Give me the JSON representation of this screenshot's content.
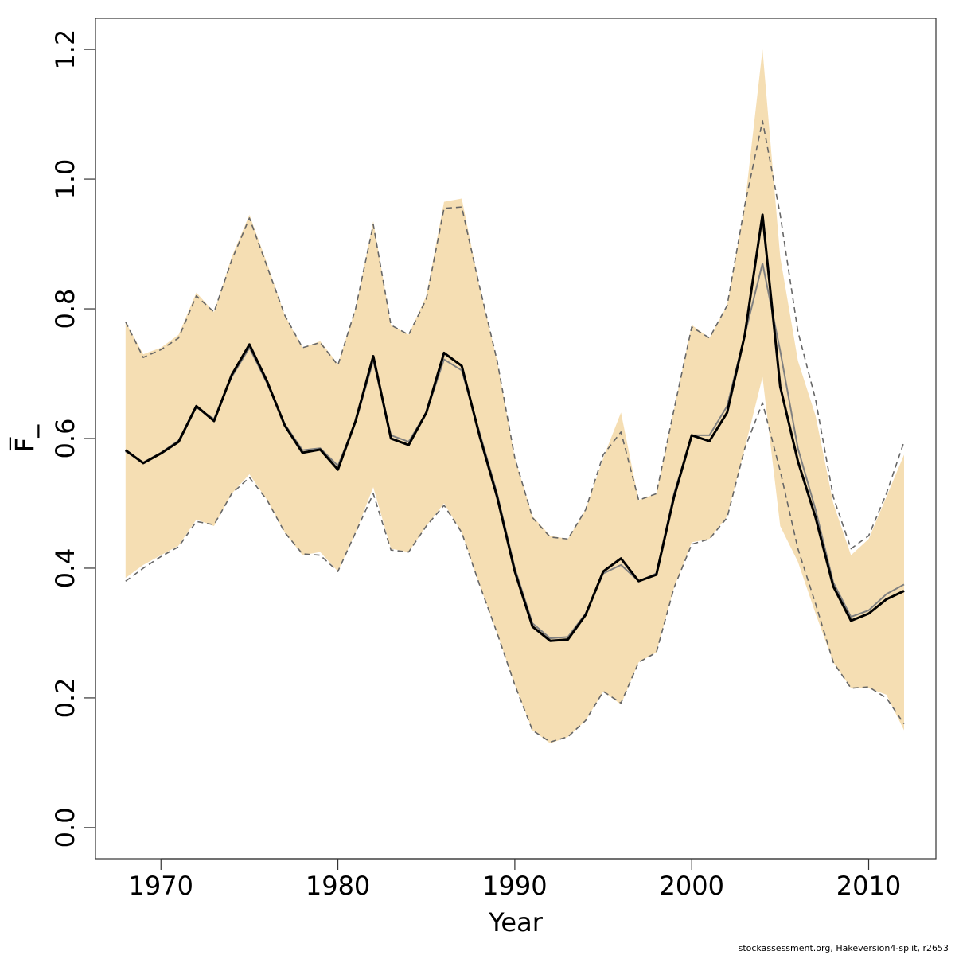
{
  "chart_data": {
    "type": "line",
    "title": "",
    "xlabel": "Year",
    "ylabel": "F̅_",
    "xlim": [
      1966.3,
      2013.8
    ],
    "ylim": [
      -0.048,
      1.248
    ],
    "x_ticks": [
      1970,
      1980,
      1990,
      2000,
      2010
    ],
    "y_ticks": [
      0.0,
      0.2,
      0.4,
      0.6,
      0.8,
      1.0,
      1.2
    ],
    "x_tick_labels": [
      "1970",
      "1980",
      "1990",
      "2000",
      "2010"
    ],
    "y_tick_labels": [
      "0.0",
      "0.2",
      "0.4",
      "0.6",
      "0.8",
      "1.0",
      "1.2"
    ],
    "grid": false,
    "legend": "none",
    "x": [
      1968,
      1969,
      1970,
      1971,
      1972,
      1973,
      1974,
      1975,
      1976,
      1977,
      1978,
      1979,
      1980,
      1981,
      1982,
      1983,
      1984,
      1985,
      1986,
      1987,
      1988,
      1989,
      1990,
      1991,
      1992,
      1993,
      1994,
      1995,
      1996,
      1997,
      1998,
      1999,
      2000,
      2001,
      2002,
      2003,
      2004,
      2005,
      2006,
      2007,
      2008,
      2009,
      2010,
      2011,
      2012
    ],
    "band": {
      "color": "#f5deb3",
      "upper": [
        0.78,
        0.73,
        0.74,
        0.76,
        0.825,
        0.795,
        0.88,
        0.945,
        0.87,
        0.79,
        0.74,
        0.75,
        0.715,
        0.8,
        0.935,
        0.775,
        0.76,
        0.82,
        0.965,
        0.97,
        0.835,
        0.72,
        0.57,
        0.48,
        0.45,
        0.445,
        0.49,
        0.57,
        0.64,
        0.505,
        0.515,
        0.645,
        0.775,
        0.755,
        0.805,
        0.96,
        1.2,
        0.88,
        0.72,
        0.635,
        0.5,
        0.42,
        0.445,
        0.51,
        0.575
      ],
      "lower": [
        0.385,
        0.405,
        0.42,
        0.435,
        0.475,
        0.465,
        0.515,
        0.545,
        0.505,
        0.455,
        0.42,
        0.425,
        0.395,
        0.455,
        0.525,
        0.43,
        0.425,
        0.465,
        0.5,
        0.455,
        0.375,
        0.3,
        0.22,
        0.15,
        0.13,
        0.14,
        0.165,
        0.21,
        0.19,
        0.255,
        0.27,
        0.37,
        0.44,
        0.445,
        0.48,
        0.585,
        0.695,
        0.465,
        0.41,
        0.33,
        0.255,
        0.215,
        0.215,
        0.205,
        0.15
      ]
    },
    "series": [
      {
        "color": "#000000",
        "style": "solid",
        "values": [
          0.582,
          0.562,
          0.577,
          0.595,
          0.65,
          0.627,
          0.698,
          0.745,
          0.688,
          0.62,
          0.578,
          0.583,
          0.552,
          0.627,
          0.727,
          0.6,
          0.59,
          0.64,
          0.732,
          0.712,
          0.605,
          0.51,
          0.395,
          0.31,
          0.288,
          0.29,
          0.328,
          0.395,
          0.415,
          0.38,
          0.39,
          0.51,
          0.605,
          0.596,
          0.64,
          0.76,
          0.945,
          0.68,
          0.565,
          0.478,
          0.372,
          0.319,
          0.33,
          0.352,
          0.365
        ]
      },
      {
        "color": "#808080",
        "style": "solid",
        "values": [
          0.58,
          0.563,
          0.578,
          0.597,
          0.648,
          0.63,
          0.695,
          0.74,
          0.685,
          0.622,
          0.582,
          0.585,
          0.558,
          0.625,
          0.72,
          0.605,
          0.595,
          0.64,
          0.722,
          0.705,
          0.61,
          0.515,
          0.4,
          0.315,
          0.292,
          0.294,
          0.33,
          0.392,
          0.405,
          0.38,
          0.392,
          0.515,
          0.605,
          0.605,
          0.65,
          0.76,
          0.87,
          0.735,
          0.585,
          0.49,
          0.378,
          0.325,
          0.335,
          0.36,
          0.375
        ]
      },
      {
        "color": "#666666",
        "style": "dashed",
        "values": [
          0.78,
          0.725,
          0.737,
          0.755,
          0.82,
          0.795,
          0.875,
          0.94,
          0.865,
          0.79,
          0.74,
          0.748,
          0.713,
          0.8,
          0.93,
          0.775,
          0.76,
          0.815,
          0.955,
          0.957,
          0.835,
          0.72,
          0.57,
          0.478,
          0.448,
          0.445,
          0.49,
          0.575,
          0.61,
          0.505,
          0.515,
          0.645,
          0.772,
          0.755,
          0.805,
          0.96,
          1.09,
          0.945,
          0.765,
          0.66,
          0.51,
          0.43,
          0.45,
          0.515,
          0.595
        ]
      },
      {
        "color": "#666666",
        "style": "dashed",
        "values": [
          0.38,
          0.4,
          0.418,
          0.433,
          0.472,
          0.467,
          0.515,
          0.54,
          0.505,
          0.455,
          0.422,
          0.42,
          0.395,
          0.455,
          0.515,
          0.428,
          0.425,
          0.465,
          0.497,
          0.455,
          0.375,
          0.3,
          0.22,
          0.15,
          0.132,
          0.14,
          0.165,
          0.21,
          0.192,
          0.255,
          0.27,
          0.37,
          0.437,
          0.445,
          0.478,
          0.585,
          0.655,
          0.55,
          0.43,
          0.345,
          0.255,
          0.215,
          0.217,
          0.2,
          0.16
        ]
      }
    ]
  },
  "footer": "stockassessment.org, Hakeversion4-split, r2653"
}
